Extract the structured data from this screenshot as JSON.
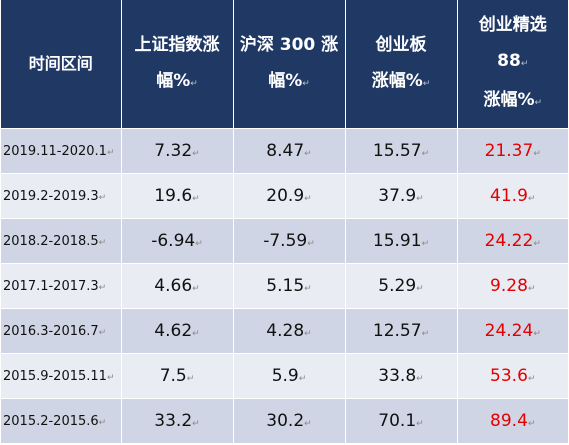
{
  "header": {
    "period": [
      "时间区间"
    ],
    "sse": [
      "上证指数涨",
      "幅%"
    ],
    "hs300": [
      "沪深 300 涨",
      "幅%"
    ],
    "chinext": [
      "创业板",
      "涨幅%"
    ],
    "chinext88": [
      "创业精选",
      "88",
      "涨幅%"
    ]
  },
  "paragraph_mark": "↵",
  "rows": [
    {
      "period": "2019.11-2020.1",
      "sse": "7.32",
      "hs300": "8.47",
      "chinext": "15.57",
      "chinext88": "21.37"
    },
    {
      "period": "2019.2-2019.3",
      "sse": "19.6",
      "hs300": "20.9",
      "chinext": "37.9",
      "chinext88": "41.9"
    },
    {
      "period": "2018.2-2018.5",
      "sse": "-6.94",
      "hs300": "-7.59",
      "chinext": "15.91",
      "chinext88": "24.22"
    },
    {
      "period": "2017.1-2017.3",
      "sse": "4.66",
      "hs300": "5.15",
      "chinext": "5.29",
      "chinext88": "9.28"
    },
    {
      "period": "2016.3-2016.7",
      "sse": "4.62",
      "hs300": "4.28",
      "chinext": "12.57",
      "chinext88": "24.24"
    },
    {
      "period": "2015.9-2015.11",
      "sse": "7.5",
      "hs300": "5.9",
      "chinext": "33.8",
      "chinext88": "53.6"
    },
    {
      "period": "2015.2-2015.6",
      "sse": "33.2",
      "hs300": "30.2",
      "chinext": "70.1",
      "chinext88": "89.4"
    }
  ],
  "colors": {
    "header_bg": "#1f3864",
    "header_text": "#ffffff",
    "row_odd_bg": "#cfd5e4",
    "row_even_bg": "#e9ecf3",
    "highlight_text": "#e30000"
  }
}
